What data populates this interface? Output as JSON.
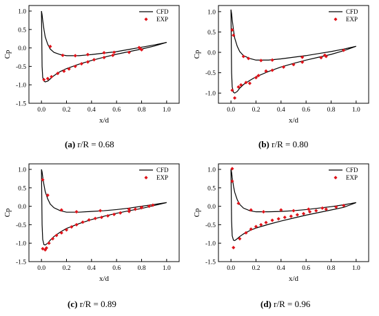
{
  "panels": [
    {
      "caption_label": "(a)",
      "caption_text": " r/R = 0.68",
      "chart_data": {
        "type": "line",
        "xlabel": "x/d",
        "ylabel": "Cp",
        "xlim": [
          -0.1,
          1.1
        ],
        "ylim": [
          -1.5,
          1.15
        ],
        "xticks": [
          "0.0",
          "0.2",
          "0.4",
          "0.6",
          "0.8",
          "1.0"
        ],
        "yticks": [
          "-1.5",
          "-1.0",
          "-0.5",
          "0.0",
          "0.5",
          "1.0"
        ],
        "grid": false,
        "legend_position": "top-right",
        "series": [
          {
            "name": "CFD",
            "kind": "line",
            "color": "#000000",
            "x": [
              1.0,
              0.9,
              0.8,
              0.7,
              0.6,
              0.5,
              0.4,
              0.3,
              0.2,
              0.15,
              0.1,
              0.07,
              0.05,
              0.03,
              0.02,
              0.01,
              0.005,
              0.0,
              0.005,
              0.01,
              0.02,
              0.03,
              0.05,
              0.07,
              0.1,
              0.15,
              0.2,
              0.3,
              0.4,
              0.5,
              0.6,
              0.7,
              0.8,
              0.9,
              1.0
            ],
            "y": [
              0.15,
              0.08,
              0.02,
              -0.04,
              -0.1,
              -0.14,
              -0.18,
              -0.21,
              -0.21,
              -0.18,
              -0.12,
              -0.03,
              0.1,
              0.3,
              0.5,
              0.75,
              0.9,
              1.0,
              -0.5,
              -0.8,
              -0.9,
              -0.92,
              -0.9,
              -0.84,
              -0.75,
              -0.64,
              -0.56,
              -0.44,
              -0.34,
              -0.25,
              -0.17,
              -0.1,
              -0.03,
              0.05,
              0.15
            ]
          },
          {
            "name": "EXP",
            "kind": "scatter",
            "color": "#e0141b",
            "x": [
              0.07,
              0.17,
              0.27,
              0.37,
              0.5,
              0.58,
              0.78,
              0.79,
              0.02,
              0.05,
              0.08,
              0.13,
              0.18,
              0.22,
              0.27,
              0.32,
              0.37,
              0.42,
              0.5,
              0.57,
              0.7,
              0.8
            ],
            "y": [
              0.04,
              -0.2,
              -0.21,
              -0.18,
              -0.13,
              -0.12,
              0.01,
              -0.02,
              -0.86,
              -0.83,
              -0.78,
              -0.69,
              -0.63,
              -0.57,
              -0.5,
              -0.43,
              -0.38,
              -0.32,
              -0.26,
              -0.2,
              -0.12,
              -0.05
            ]
          }
        ]
      }
    },
    {
      "caption_label": "(b)",
      "caption_text": " r/R = 0.80",
      "chart_data": {
        "type": "line",
        "xlabel": "x/d",
        "ylabel": "Cp",
        "xlim": [
          -0.1,
          1.1
        ],
        "ylim": [
          -1.25,
          1.15
        ],
        "xticks": [
          "0.0",
          "0.2",
          "0.4",
          "0.6",
          "0.8",
          "1.0"
        ],
        "yticks": [
          "-1.0",
          "-0.5",
          "0.0",
          "0.5",
          "1.0"
        ],
        "grid": false,
        "legend_position": "top-right",
        "series": [
          {
            "name": "CFD",
            "kind": "line",
            "color": "#000000",
            "x": [
              1.0,
              0.9,
              0.8,
              0.7,
              0.6,
              0.5,
              0.4,
              0.3,
              0.2,
              0.15,
              0.1,
              0.07,
              0.05,
              0.03,
              0.02,
              0.01,
              0.005,
              0.0,
              0.005,
              0.01,
              0.02,
              0.03,
              0.05,
              0.07,
              0.1,
              0.15,
              0.2,
              0.3,
              0.4,
              0.5,
              0.6,
              0.7,
              0.8,
              0.9,
              1.0
            ],
            "y": [
              0.15,
              0.08,
              0.02,
              -0.03,
              -0.08,
              -0.12,
              -0.16,
              -0.19,
              -0.19,
              -0.15,
              -0.08,
              0.02,
              0.15,
              0.35,
              0.55,
              0.8,
              0.95,
              1.05,
              -0.5,
              -0.85,
              -0.98,
              -1.0,
              -0.96,
              -0.88,
              -0.79,
              -0.69,
              -0.6,
              -0.47,
              -0.36,
              -0.27,
              -0.19,
              -0.12,
              -0.05,
              0.04,
              0.15
            ]
          },
          {
            "name": "EXP",
            "kind": "scatter",
            "color": "#e0141b",
            "x": [
              0.01,
              0.02,
              0.1,
              0.14,
              0.24,
              0.33,
              0.57,
              0.75,
              0.76,
              0.9,
              0.01,
              0.03,
              0.06,
              0.08,
              0.12,
              0.15,
              0.2,
              0.22,
              0.28,
              0.33,
              0.42,
              0.5,
              0.57,
              0.72
            ],
            "y": [
              0.55,
              0.42,
              -0.1,
              -0.15,
              -0.2,
              -0.19,
              -0.12,
              -0.07,
              -0.1,
              0.05,
              -0.93,
              -1.12,
              -0.85,
              -0.8,
              -0.74,
              -0.76,
              -0.62,
              -0.57,
              -0.46,
              -0.44,
              -0.36,
              -0.3,
              -0.24,
              -0.13
            ]
          }
        ]
      }
    },
    {
      "caption_label": "(c)",
      "caption_text": " r/R = 0.89",
      "chart_data": {
        "type": "line",
        "xlabel": "x/d",
        "ylabel": "Cp",
        "xlim": [
          -0.1,
          1.1
        ],
        "ylim": [
          -1.5,
          1.15
        ],
        "xticks": [
          "0.0",
          "0.2",
          "0.4",
          "0.6",
          "0.8",
          "1.0"
        ],
        "yticks": [
          "-1.5",
          "-1.0",
          "-0.5",
          "0.0",
          "0.5",
          "1.0"
        ],
        "grid": false,
        "legend_position": "top-right",
        "series": [
          {
            "name": "CFD",
            "kind": "line",
            "color": "#000000",
            "x": [
              1.0,
              0.9,
              0.8,
              0.7,
              0.6,
              0.5,
              0.4,
              0.3,
              0.2,
              0.15,
              0.1,
              0.07,
              0.05,
              0.03,
              0.02,
              0.01,
              0.005,
              0.0,
              0.005,
              0.01,
              0.02,
              0.03,
              0.05,
              0.07,
              0.1,
              0.15,
              0.2,
              0.3,
              0.4,
              0.5,
              0.6,
              0.7,
              0.8,
              0.9,
              1.0
            ],
            "y": [
              0.1,
              0.05,
              0.0,
              -0.05,
              -0.09,
              -0.12,
              -0.14,
              -0.16,
              -0.16,
              -0.12,
              -0.04,
              0.06,
              0.2,
              0.4,
              0.58,
              0.8,
              0.93,
              1.0,
              -0.5,
              -0.9,
              -1.04,
              -1.05,
              -1.0,
              -0.92,
              -0.82,
              -0.7,
              -0.6,
              -0.47,
              -0.36,
              -0.27,
              -0.19,
              -0.12,
              -0.06,
              0.02,
              0.1
            ]
          },
          {
            "name": "EXP",
            "kind": "scatter",
            "color": "#e0141b",
            "x": [
              0.01,
              0.05,
              0.16,
              0.28,
              0.47,
              0.7,
              0.8,
              0.01,
              0.03,
              0.04,
              0.06,
              0.09,
              0.12,
              0.16,
              0.2,
              0.24,
              0.28,
              0.33,
              0.38,
              0.43,
              0.48,
              0.53,
              0.58,
              0.63,
              0.7,
              0.75,
              0.8,
              0.86,
              0.89
            ],
            "y": [
              0.72,
              0.3,
              -0.1,
              -0.15,
              -0.12,
              -0.08,
              -0.03,
              -1.15,
              -1.18,
              -1.13,
              -1.0,
              -0.88,
              -0.79,
              -0.72,
              -0.64,
              -0.56,
              -0.5,
              -0.43,
              -0.37,
              -0.33,
              -0.3,
              -0.26,
              -0.22,
              -0.18,
              -0.14,
              -0.08,
              -0.04,
              0.0,
              0.03
            ]
          }
        ]
      }
    },
    {
      "caption_label": "(d)",
      "caption_text": " r/R = 0.96",
      "chart_data": {
        "type": "line",
        "xlabel": "x/d",
        "ylabel": "Cp",
        "xlim": [
          -0.1,
          1.1
        ],
        "ylim": [
          -1.5,
          1.15
        ],
        "xticks": [
          "0.0",
          "0.2",
          "0.4",
          "0.6",
          "0.8",
          "1.0"
        ],
        "yticks": [
          "-1.5",
          "-1.0",
          "-0.5",
          "0.0",
          "0.5",
          "1.0"
        ],
        "grid": false,
        "legend_position": "top-right",
        "series": [
          {
            "name": "CFD",
            "kind": "line",
            "color": "#000000",
            "x": [
              1.0,
              0.9,
              0.8,
              0.7,
              0.6,
              0.5,
              0.4,
              0.3,
              0.2,
              0.15,
              0.1,
              0.07,
              0.05,
              0.03,
              0.02,
              0.01,
              0.005,
              0.0,
              0.005,
              0.01,
              0.02,
              0.03,
              0.05,
              0.07,
              0.1,
              0.15,
              0.2,
              0.3,
              0.4,
              0.5,
              0.6,
              0.7,
              0.8,
              0.9,
              1.0
            ],
            "y": [
              0.1,
              0.04,
              -0.01,
              -0.05,
              -0.09,
              -0.12,
              -0.14,
              -0.15,
              -0.15,
              -0.12,
              -0.05,
              0.05,
              0.18,
              0.38,
              0.55,
              0.78,
              0.92,
              1.0,
              -0.4,
              -0.8,
              -0.92,
              -0.93,
              -0.88,
              -0.82,
              -0.75,
              -0.66,
              -0.59,
              -0.49,
              -0.4,
              -0.32,
              -0.24,
              -0.17,
              -0.1,
              -0.03,
              0.1
            ]
          },
          {
            "name": "EXP",
            "kind": "scatter",
            "color": "#e0141b",
            "x": [
              0.01,
              0.01,
              0.06,
              0.16,
              0.26,
              0.4,
              0.5,
              0.62,
              0.73,
              0.84,
              0.9,
              0.02,
              0.07,
              0.12,
              0.16,
              0.2,
              0.24,
              0.28,
              0.33,
              0.38,
              0.43,
              0.48,
              0.53,
              0.58,
              0.63,
              0.68,
              0.76
            ],
            "y": [
              1.02,
              0.68,
              0.08,
              -0.1,
              -0.15,
              -0.1,
              -0.12,
              -0.08,
              -0.05,
              -0.02,
              0.02,
              -1.12,
              -0.88,
              -0.72,
              -0.62,
              -0.55,
              -0.5,
              -0.44,
              -0.38,
              -0.34,
              -0.3,
              -0.27,
              -0.23,
              -0.2,
              -0.15,
              -0.12,
              -0.08
            ]
          }
        ]
      }
    }
  ]
}
